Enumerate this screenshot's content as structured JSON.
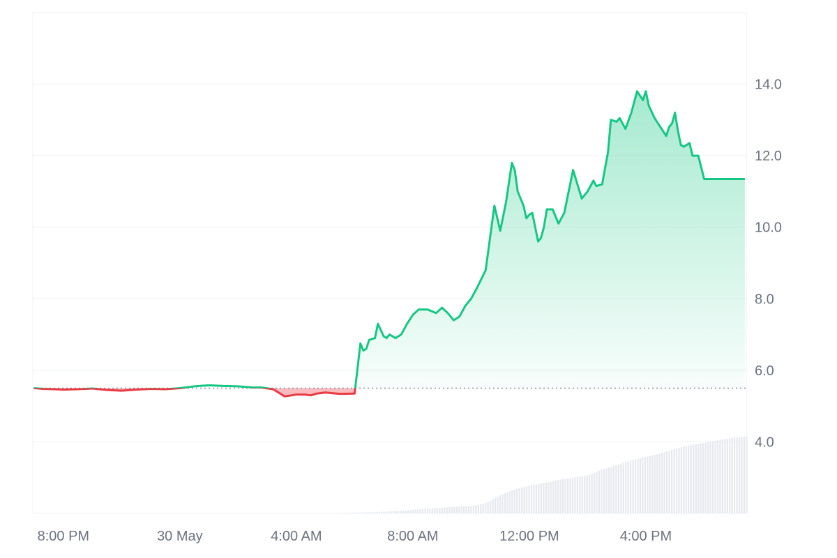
{
  "chart_data": {
    "type": "area",
    "title": "",
    "xlabel": "",
    "ylabel": "",
    "baseline": 5.5,
    "ylim": [
      2.0,
      16.0
    ],
    "y_axis_position": "right",
    "grid": true,
    "y_ticks": [
      {
        "value": 4.0,
        "label": "4.0"
      },
      {
        "value": 6.0,
        "label": "6.0"
      },
      {
        "value": 8.0,
        "label": "8.0"
      },
      {
        "value": 10.0,
        "label": "10.0"
      },
      {
        "value": 12.0,
        "label": "12.0"
      },
      {
        "value": 14.0,
        "label": "14.0"
      }
    ],
    "x_range_hours": [
      -5.05,
      19.45
    ],
    "x_ticks": [
      {
        "hours": -4,
        "label": "8:00 PM"
      },
      {
        "hours": 0,
        "label": "30 May"
      },
      {
        "hours": 4,
        "label": "4:00 AM"
      },
      {
        "hours": 8,
        "label": "8:00 AM"
      },
      {
        "hours": 12,
        "label": "12:00 PM"
      },
      {
        "hours": 16,
        "label": "4:00 PM"
      }
    ],
    "colors": {
      "up": "#16c784",
      "down": "#ea3943",
      "grid": "#eef0f3",
      "volume": "#e5e8ee",
      "baseline": "#808a9d"
    },
    "series": [
      {
        "x": [
          -5.0,
          -4.7,
          -4.3,
          -4.0,
          -3.5,
          -3.0,
          -2.5,
          -2.0,
          -1.5,
          -1.0,
          -0.5,
          0.0,
          0.5,
          1.0,
          1.5,
          2.0,
          2.5,
          2.8,
          3.2,
          3.6,
          4.0,
          4.3,
          4.5,
          4.7,
          5.0,
          5.5,
          6.0,
          6.2,
          6.3,
          6.4,
          6.5,
          6.7,
          6.8,
          7.0,
          7.1,
          7.2,
          7.4,
          7.6,
          7.8,
          8.0,
          8.2,
          8.5,
          8.8,
          9.0,
          9.2,
          9.4,
          9.6,
          9.8,
          10.0,
          10.2,
          10.5,
          10.8,
          11.0,
          11.2,
          11.4,
          11.5,
          11.6,
          11.8,
          11.9,
          12.0,
          12.1,
          12.3,
          12.4,
          12.5,
          12.6,
          12.8,
          13.0,
          13.2,
          13.3,
          13.5,
          13.8,
          14.0,
          14.2,
          14.3,
          14.5,
          14.7,
          14.8,
          15.0,
          15.1,
          15.3,
          15.5,
          15.7,
          15.9,
          16.0,
          16.1,
          16.3,
          16.5,
          16.7,
          16.8,
          16.9,
          17.0,
          17.1,
          17.2,
          17.3,
          17.5,
          17.6,
          17.8,
          18.0,
          18.1,
          18.3,
          18.5,
          18.7,
          18.9,
          19.0,
          19.2,
          19.4
        ],
        "y": [
          5.5,
          5.48,
          5.47,
          5.46,
          5.47,
          5.49,
          5.45,
          5.43,
          5.46,
          5.48,
          5.47,
          5.5,
          5.55,
          5.58,
          5.56,
          5.55,
          5.52,
          5.52,
          5.47,
          5.27,
          5.32,
          5.32,
          5.3,
          5.35,
          5.38,
          5.34,
          5.35,
          6.75,
          6.55,
          6.6,
          6.85,
          6.9,
          7.3,
          6.95,
          6.9,
          7.0,
          6.9,
          7.0,
          7.3,
          7.55,
          7.7,
          7.7,
          7.6,
          7.75,
          7.6,
          7.4,
          7.5,
          7.8,
          8.0,
          8.3,
          8.8,
          10.6,
          9.9,
          10.7,
          11.8,
          11.6,
          11.0,
          10.6,
          10.25,
          10.35,
          10.4,
          9.6,
          9.7,
          10.0,
          10.5,
          10.5,
          10.1,
          10.4,
          10.8,
          11.6,
          10.8,
          11.0,
          11.3,
          11.15,
          11.2,
          12.1,
          13.0,
          12.95,
          13.05,
          12.75,
          13.2,
          13.8,
          13.55,
          13.8,
          13.4,
          13.05,
          12.8,
          12.55,
          12.8,
          12.9,
          13.2,
          12.7,
          12.3,
          12.25,
          12.35,
          12.0,
          12.0,
          11.35,
          11.35,
          11.35,
          11.35,
          11.35,
          11.35,
          11.35,
          11.35,
          11.35
        ]
      }
    ],
    "volume": {
      "x": [
        5.5,
        6.5,
        7.5,
        8.0,
        9.0,
        10.0,
        10.5,
        11.0,
        11.5,
        12.0,
        12.5,
        13.0,
        14.0,
        14.5,
        15.0,
        15.5,
        16.0,
        16.5,
        17.0,
        17.5,
        18.0,
        18.5,
        19.0,
        19.4
      ],
      "v": [
        0.01,
        0.05,
        0.1,
        0.16,
        0.25,
        0.32,
        0.45,
        0.8,
        1.05,
        1.2,
        1.32,
        1.45,
        1.65,
        1.9,
        2.1,
        2.3,
        2.45,
        2.6,
        2.8,
        2.95,
        3.05,
        3.18,
        3.28,
        3.32
      ],
      "vmax": 3.5
    }
  }
}
